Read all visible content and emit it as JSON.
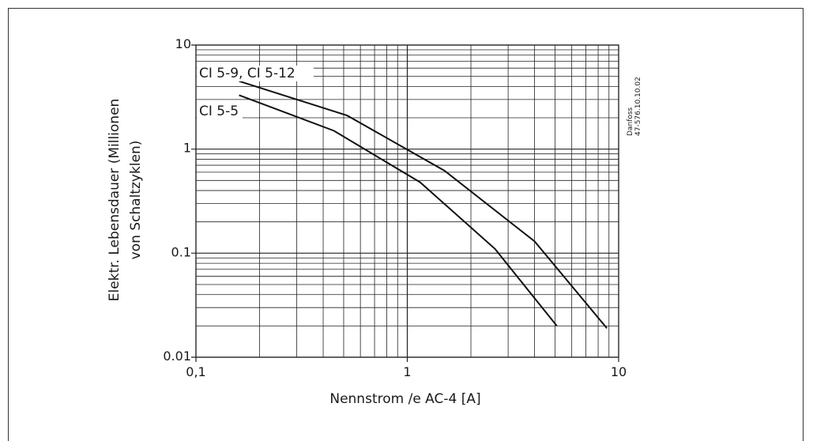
{
  "chart_data": {
    "type": "line",
    "xscale": "log",
    "yscale": "log",
    "xlim": [
      0.1,
      10
    ],
    "ylim": [
      0.01,
      10
    ],
    "xlabel": "Nennstrom /e AC-4 [A]",
    "ylabel_lines": [
      "Elektr. Lebensdauer (Millionen",
      "von Schaltzyklen)"
    ],
    "x_tick_labels": [
      {
        "value": 0.1,
        "label": "0,1"
      },
      {
        "value": 1,
        "label": "1"
      },
      {
        "value": 10,
        "label": "10"
      }
    ],
    "y_tick_labels": [
      {
        "value": 10,
        "label": "10"
      },
      {
        "value": 1,
        "label": "1"
      },
      {
        "value": 0.1,
        "label": "0.1"
      },
      {
        "value": 0.01,
        "label": "0.01"
      }
    ],
    "grid": true,
    "series": [
      {
        "name": "CI 5-9, CI 5-12",
        "points": [
          [
            0.16,
            4.5
          ],
          [
            0.52,
            2.1
          ],
          [
            1.5,
            0.62
          ],
          [
            4.0,
            0.13
          ],
          [
            8.8,
            0.019
          ]
        ]
      },
      {
        "name": "CI 5-5",
        "points": [
          [
            0.16,
            3.3
          ],
          [
            0.45,
            1.5
          ],
          [
            1.15,
            0.48
          ],
          [
            2.6,
            0.11
          ],
          [
            5.1,
            0.02
          ]
        ]
      }
    ],
    "watermark_lines": [
      "Danfoss",
      "47-576.10.10.02"
    ]
  }
}
